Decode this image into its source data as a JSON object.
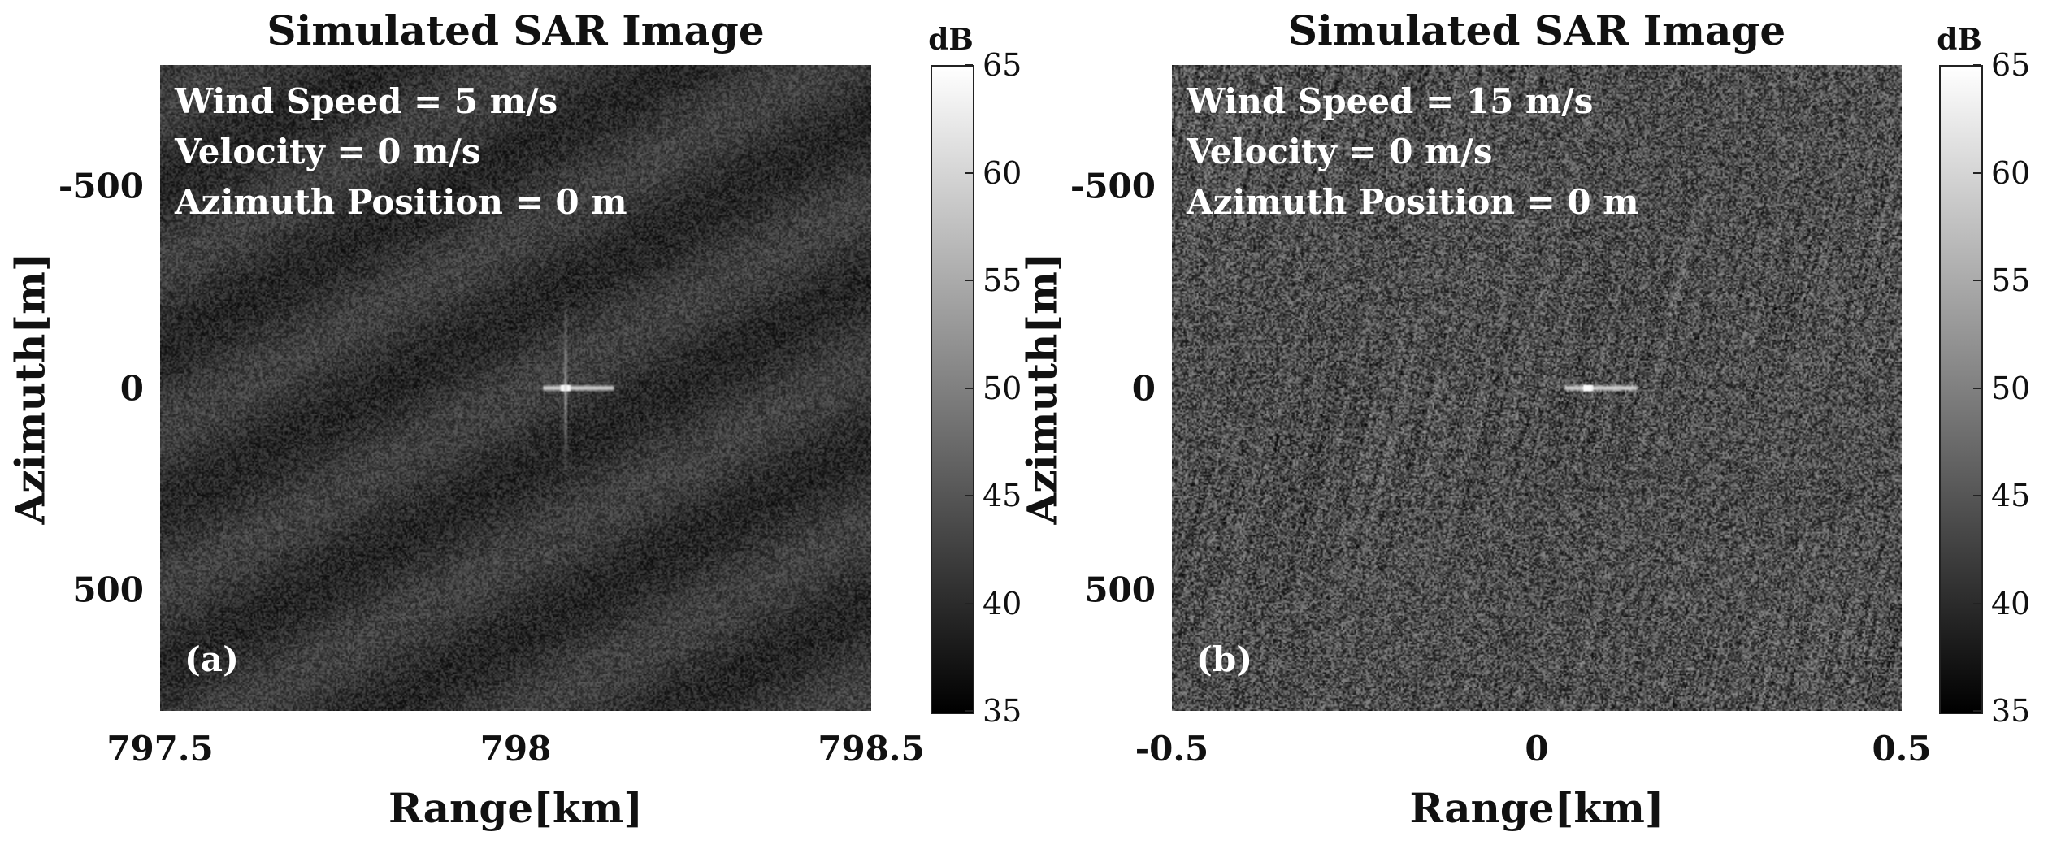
{
  "chart_data": [
    {
      "type": "heatmap",
      "title": "Simulated SAR Image",
      "xlabel": "Range[km]",
      "ylabel": "Azimuth[m]",
      "xticks": [
        "797.5",
        "798",
        "798.5"
      ],
      "xlim": [
        797.5,
        798.5
      ],
      "yticks": [
        "-500",
        "0",
        "500"
      ],
      "ylim": [
        -800,
        800
      ],
      "y_reversed": true,
      "colorbar": {
        "unit": "dB",
        "ticks": [
          "35",
          "40",
          "45",
          "50",
          "55",
          "60",
          "65"
        ],
        "range": [
          35,
          65
        ],
        "colormap": "gray"
      },
      "annotations": [
        "Wind Speed = 5 m/s",
        "Velocity = 0 m/s",
        "Azimuth Position = 0 m"
      ],
      "panel_label": "(a)",
      "target": {
        "range_km": 798.07,
        "azimuth_m": 0
      },
      "sea_texture": "diagonal swell"
    },
    {
      "type": "heatmap",
      "title": "Simulated SAR Image",
      "xlabel": "Range[km]",
      "ylabel": "Azimuth[m]",
      "xticks": [
        "-0.5",
        "0",
        "0.5"
      ],
      "xlim": [
        -0.5,
        0.5
      ],
      "yticks": [
        "-500",
        "0",
        "500"
      ],
      "ylim": [
        -800,
        800
      ],
      "y_reversed": true,
      "colorbar": {
        "unit": "dB",
        "ticks": [
          "35",
          "40",
          "45",
          "50",
          "55",
          "60",
          "65"
        ],
        "range": [
          35,
          65
        ],
        "colormap": "gray"
      },
      "annotations": [
        "Wind Speed = 15 m/s",
        "Velocity = 0 m/s",
        "Azimuth Position = 0 m"
      ],
      "panel_label": "(b)",
      "target": {
        "range_km": 0.07,
        "azimuth_m": 0
      },
      "sea_texture": "rough streaks"
    }
  ]
}
